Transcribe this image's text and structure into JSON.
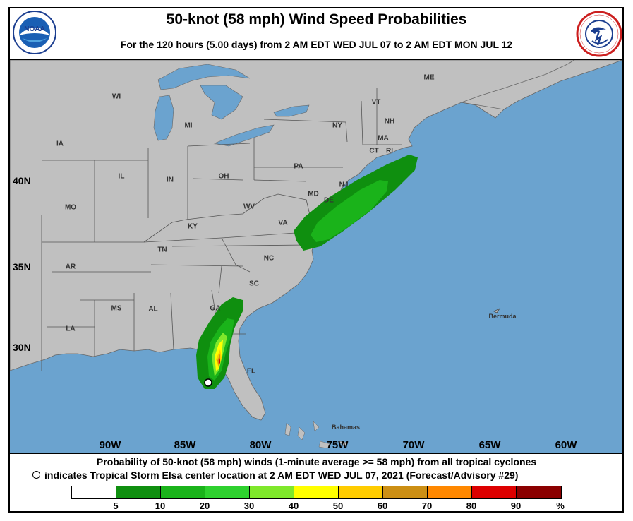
{
  "header": {
    "title": "50-knot (58 mph) Wind Speed Probabilities",
    "subtitle": "For the 120 hours (5.00 days) from 2 AM EDT WED JUL 07 to 2 AM EDT MON JUL 12"
  },
  "logos": {
    "left": {
      "text": "NOAA",
      "icon": "noaa-logo-icon",
      "color": "#1a3d8f"
    },
    "right": {
      "text": "NATIONAL WEATHER SERVICE",
      "icon": "nws-logo-icon",
      "color": "#cc1f1f"
    }
  },
  "map": {
    "colors": {
      "ocean": "#6ba3cf",
      "land": "#c0c0c0",
      "lakes": "#6ba3cf",
      "borders": "#555555"
    },
    "latitude_labels": [
      "40N",
      "35N",
      "30N"
    ],
    "longitude_labels": [
      "90W",
      "85W",
      "80W",
      "75W",
      "70W",
      "65W",
      "60W"
    ],
    "state_labels": [
      "WI",
      "MI",
      "IA",
      "IL",
      "IN",
      "OH",
      "PA",
      "NY",
      "VT",
      "NH",
      "ME",
      "MA",
      "CT",
      "RI",
      "NJ",
      "MD",
      "DE",
      "WV",
      "VA",
      "KY",
      "MO",
      "TN",
      "NC",
      "SC",
      "AR",
      "MS",
      "AL",
      "GA",
      "LA",
      "FL"
    ],
    "place_labels": [
      "Bermuda",
      "Bahamas"
    ]
  },
  "caption": {
    "line1": "Probability of 50-knot (58 mph) winds (1-minute average >= 58 mph) from all tropical cyclones",
    "line2": "indicates Tropical Storm Elsa center location at 2 AM EDT WED JUL 07, 2021 (Forecast/Advisory #29)"
  },
  "legend": {
    "swatches": [
      "#ffffff",
      "#0f8f0f",
      "#1ab31a",
      "#2ed12e",
      "#7fe82b",
      "#ffff00",
      "#ffcc00",
      "#cc8f14",
      "#ff8800",
      "#dd0000",
      "#8b0000",
      "#880088"
    ],
    "labels": [
      "5",
      "10",
      "20",
      "30",
      "40",
      "50",
      "60",
      "70",
      "80",
      "90",
      "%"
    ]
  }
}
